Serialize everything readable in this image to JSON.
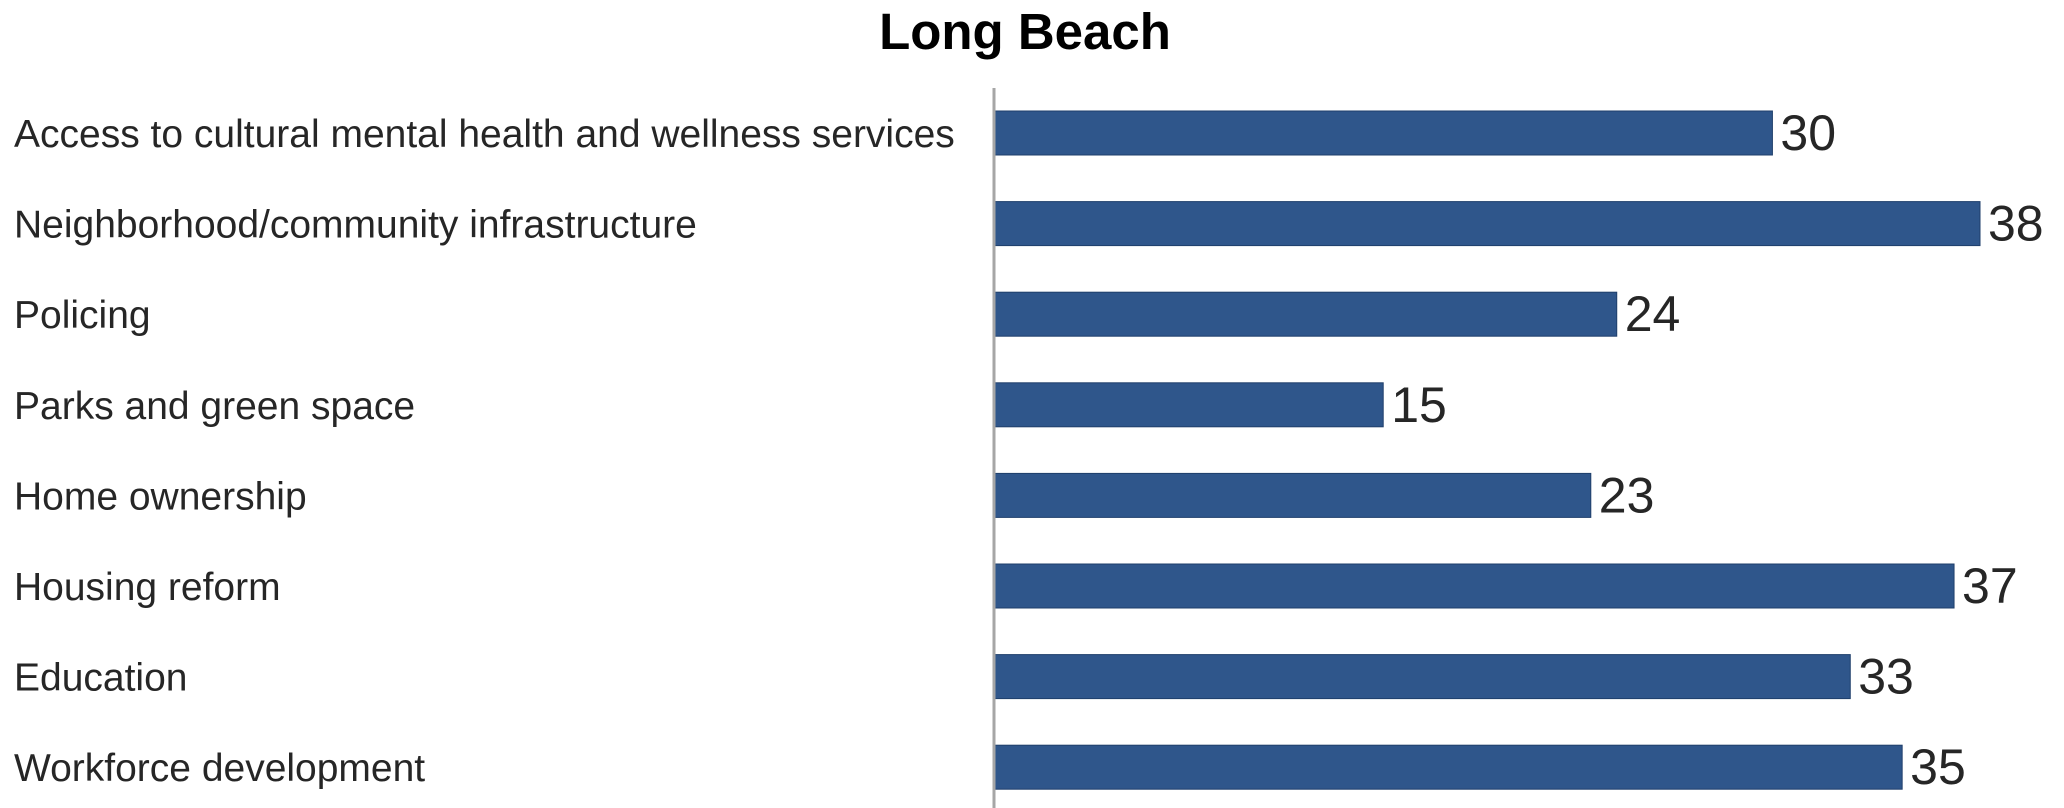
{
  "chart_data": {
    "type": "bar",
    "orientation": "horizontal",
    "title": "Long Beach",
    "xlabel": "",
    "ylabel": "",
    "categories": [
      "Access to cultural mental health and wellness services",
      "Neighborhood/community infrastructure",
      "Policing",
      "Parks and green space",
      "Home ownership",
      "Housing reform",
      "Education",
      "Workforce development"
    ],
    "values": [
      30,
      38,
      24,
      15,
      23,
      37,
      33,
      35
    ],
    "xlim": [
      0,
      38
    ],
    "data_labels": true,
    "grid": false,
    "legend": "none",
    "colors": {
      "bar": "#2f568b",
      "bar_edge": "#1f3f6b",
      "axis": "#a6a6a6",
      "text": "#262626",
      "title": "#000000"
    }
  }
}
